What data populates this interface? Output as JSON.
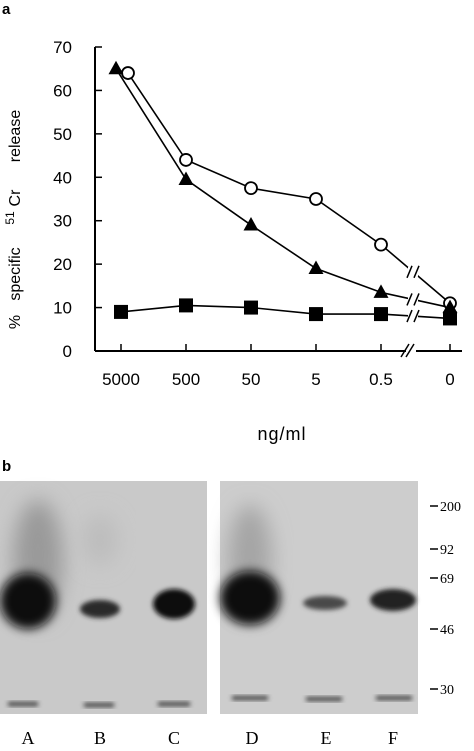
{
  "panel_a": {
    "label": "a",
    "ylabel_parts": [
      "%",
      "specific",
      "51",
      "Cr",
      "release"
    ],
    "xlabel": "ng/ml"
  },
  "panel_b": {
    "label": "b",
    "lanes": [
      "A",
      "B",
      "C",
      "D",
      "E",
      "F"
    ],
    "markers": [
      "200",
      "92",
      "69",
      "46",
      "30"
    ]
  },
  "chart_data": {
    "type": "line",
    "categories": [
      "5000",
      "500",
      "50",
      "5",
      "0.5",
      "0"
    ],
    "ylim": [
      0,
      70
    ],
    "yticks": [
      0,
      10,
      20,
      30,
      40,
      50,
      60,
      70
    ],
    "axis_break_between": [
      "0.5",
      "0"
    ],
    "grid": false,
    "series": [
      {
        "marker": "open-circle",
        "values": [
          64,
          44,
          37.5,
          35,
          24.5,
          11
        ]
      },
      {
        "marker": "filled-triangle",
        "values": [
          65,
          39.5,
          29,
          19,
          13.5,
          10
        ]
      },
      {
        "marker": "filled-square",
        "values": [
          9,
          10.5,
          10,
          8.5,
          8.5,
          7.5
        ]
      }
    ]
  }
}
